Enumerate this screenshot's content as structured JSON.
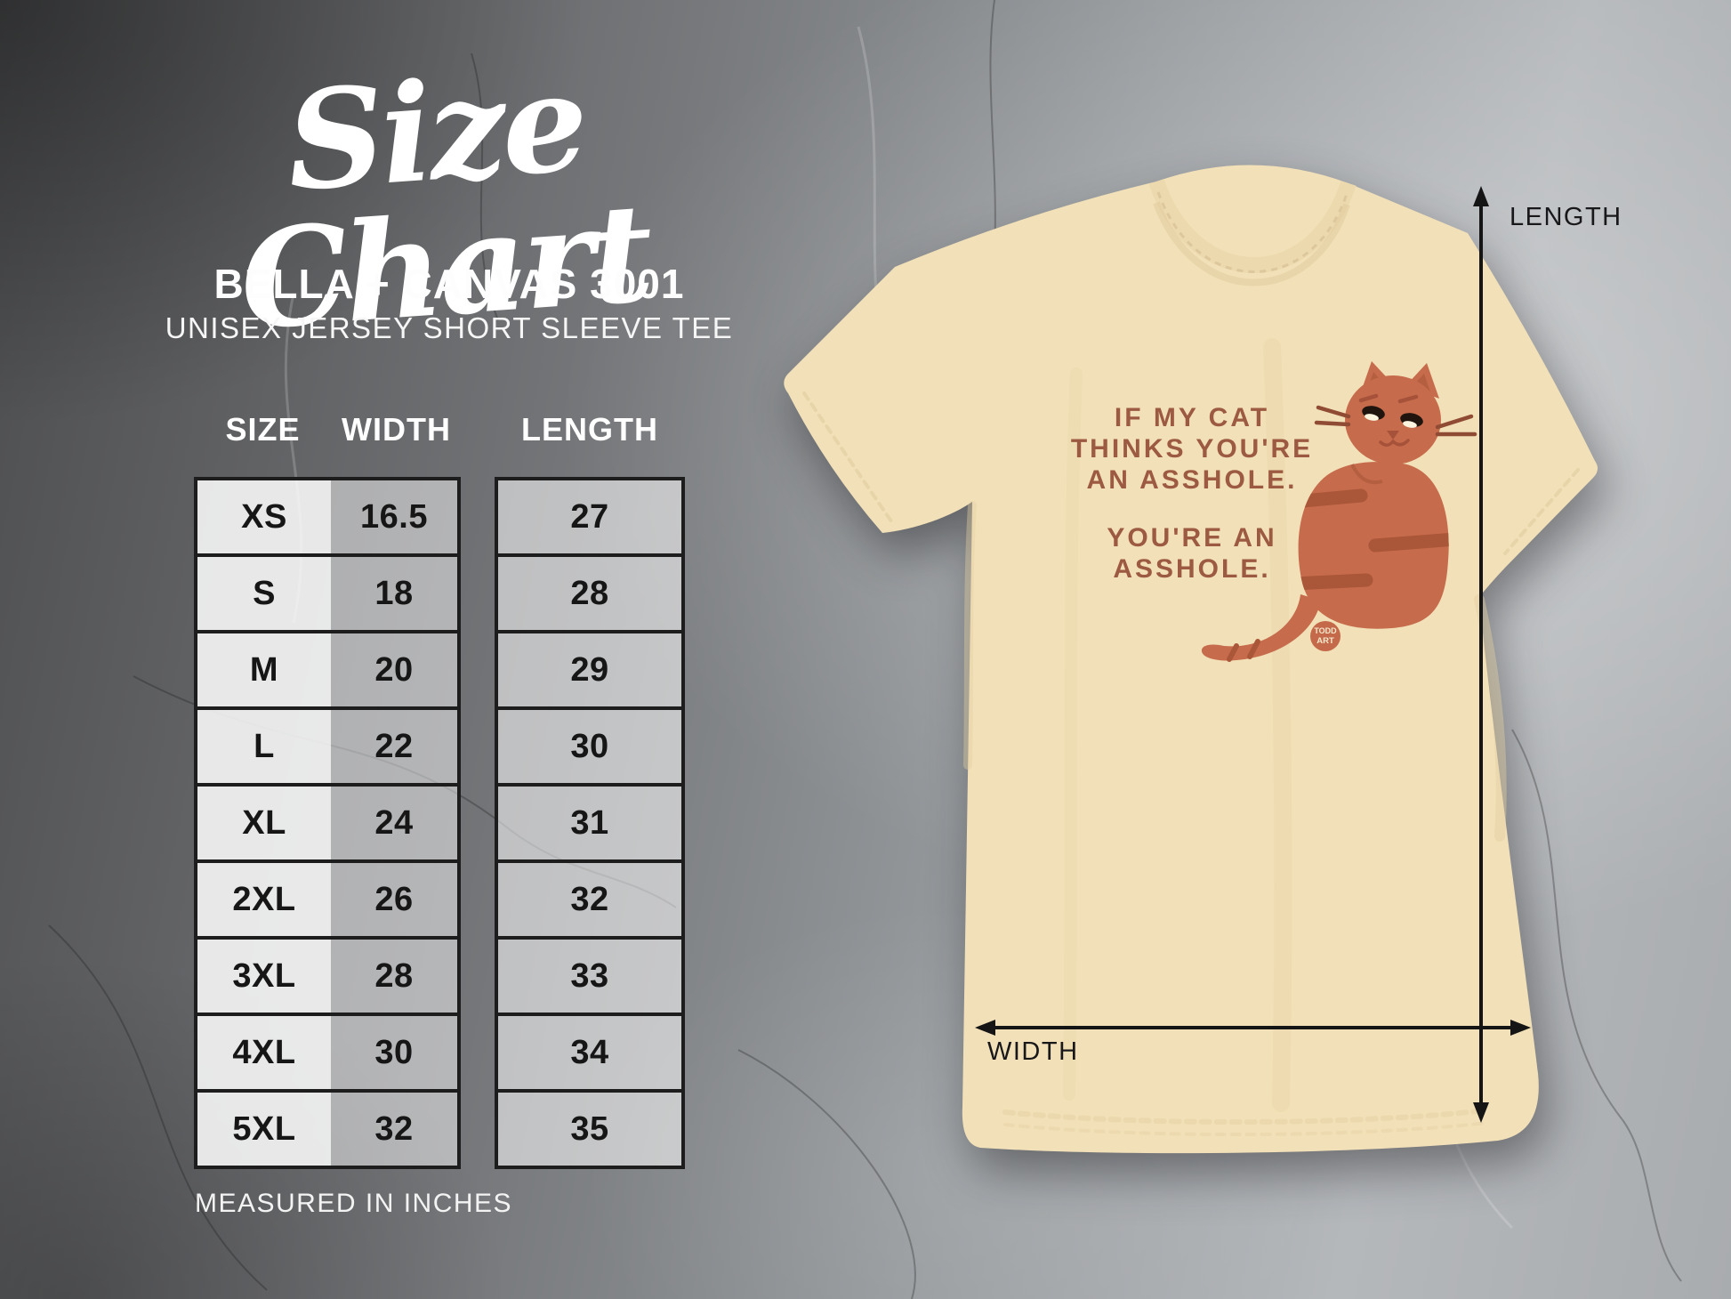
{
  "header": {
    "title": "Size Chart",
    "brand": "BELLA + CANVAS 3001",
    "product": "UNISEX JERSEY SHORT SLEEVE TEE"
  },
  "chart_data": {
    "type": "table",
    "title": "Size Chart — Bella + Canvas 3001 Unisex Jersey Short Sleeve Tee",
    "columns": [
      "SIZE",
      "WIDTH",
      "LENGTH"
    ],
    "rows": [
      [
        "XS",
        "16.5",
        "27"
      ],
      [
        "S",
        "18",
        "28"
      ],
      [
        "M",
        "20",
        "29"
      ],
      [
        "L",
        "22",
        "30"
      ],
      [
        "XL",
        "24",
        "31"
      ],
      [
        "2XL",
        "26",
        "32"
      ],
      [
        "3XL",
        "28",
        "33"
      ],
      [
        "4XL",
        "30",
        "34"
      ],
      [
        "5XL",
        "32",
        "35"
      ]
    ],
    "units": "inches",
    "note": "MEASURED IN INCHES"
  },
  "shirt": {
    "print": {
      "top_lines": [
        "IF MY CAT",
        "THINKS YOU'RE",
        "AN ASSHOLE."
      ],
      "bottom_lines": [
        "YOU'RE AN",
        "ASSHOLE."
      ]
    },
    "badge": {
      "top": "TODD",
      "bottom": "ART"
    },
    "labels": {
      "length": "LENGTH",
      "width": "WIDTH"
    }
  },
  "colors": {
    "shirt": "#f2e0b8",
    "shirt_shade": "#e3cfa2",
    "cat": "#c66b4b",
    "cat_stripe": "#aa5638",
    "print_text": "#9c5a42",
    "badge_bg": "#c4694a",
    "badge_text": "#f6e9cc",
    "arrow": "#151515",
    "table_border": "#1d1d1d",
    "table_text": "#161616"
  }
}
